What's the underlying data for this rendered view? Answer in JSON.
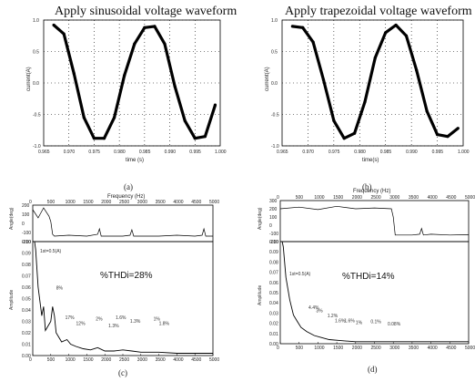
{
  "chart_data": [
    {
      "id": "a",
      "type": "line",
      "title": "Apply sinusoidal voltage waveform",
      "xlabel": "time (s)",
      "ylabel": "current(A)",
      "caption": "(a)",
      "xlim": [
        0.965,
        1.0
      ],
      "ylim": [
        -1.0,
        1.0
      ],
      "xticks": [
        "0.965",
        "0.970",
        "0.975",
        "0.980",
        "0.985",
        "0.990",
        "0.995",
        "1.000"
      ],
      "yticks": [
        "-1.0",
        "-0.5",
        "0.0",
        "0.5",
        "1.0"
      ],
      "grid": "dotted",
      "series": [
        {
          "x": [
            0.967,
            0.969,
            0.971,
            0.973,
            0.975,
            0.977,
            0.979,
            0.981,
            0.983,
            0.985,
            0.987,
            0.989,
            0.991,
            0.993,
            0.995,
            0.997,
            0.999
          ],
          "y": [
            0.92,
            0.78,
            0.15,
            -0.55,
            -0.88,
            -0.88,
            -0.55,
            0.12,
            0.62,
            0.88,
            0.9,
            0.62,
            -0.05,
            -0.6,
            -0.88,
            -0.85,
            -0.35
          ]
        }
      ]
    },
    {
      "id": "b",
      "type": "line",
      "title": "Apply trapezoidal voltage waveform",
      "xlabel": "time(s)",
      "ylabel": "current(A)",
      "caption": "(b)",
      "xlim": [
        0.965,
        1.0
      ],
      "ylim": [
        -1.0,
        1.0
      ],
      "xticks": [
        "0.965",
        "0.970",
        "0.975",
        "0.980",
        "0.985",
        "0.990",
        "0.995",
        "1.000"
      ],
      "yticks": [
        "-1.0",
        "-0.5",
        "0.0",
        "0.5",
        "1.0"
      ],
      "grid": "dotted",
      "series": [
        {
          "x": [
            0.967,
            0.969,
            0.971,
            0.973,
            0.975,
            0.977,
            0.979,
            0.981,
            0.983,
            0.985,
            0.987,
            0.989,
            0.991,
            0.993,
            0.995,
            0.997,
            0.999
          ],
          "y": [
            0.9,
            0.88,
            0.65,
            0.05,
            -0.6,
            -0.88,
            -0.8,
            -0.3,
            0.4,
            0.8,
            0.92,
            0.75,
            0.2,
            -0.45,
            -0.82,
            -0.85,
            -0.72
          ]
        }
      ]
    },
    {
      "id": "c",
      "type": "line",
      "caption": "(c)",
      "top_xlabel": "Frequency (Hz)",
      "xticks": [
        "0",
        "500",
        "1000",
        "1500",
        "2000",
        "2500",
        "3000",
        "3500",
        "4000",
        "4500",
        "5000"
      ],
      "xlim": [
        0,
        5000
      ],
      "phase_ylabel": "Angle(deg)",
      "phase_yticks": [
        "-200",
        "-100",
        "0",
        "100",
        "200"
      ],
      "phase_ylim": [
        -200,
        200
      ],
      "phase_x": [
        0,
        150,
        300,
        450,
        500,
        550,
        600,
        1000,
        1500,
        1800,
        1850,
        1900,
        2500,
        2700,
        2750,
        2800,
        3500,
        4000,
        4500,
        4700,
        4750,
        4800,
        5000
      ],
      "phase_y": [
        150,
        60,
        170,
        80,
        20,
        -120,
        -140,
        -130,
        -140,
        -120,
        -60,
        -140,
        -140,
        -130,
        -70,
        -140,
        -140,
        -130,
        -140,
        -130,
        -60,
        -140,
        -140
      ],
      "amp_ylabel": "Amplitude",
      "amp_yticks": [
        "0.00",
        "0.01",
        "0.02",
        "0.03",
        "0.04",
        "0.05",
        "0.06",
        "0.07",
        "0.08",
        "0.09",
        "0.10"
      ],
      "amp_ylim": [
        0,
        0.1
      ],
      "fundamental_label": "1st=0.5(A)",
      "thd_label": "%THDi=28%",
      "annotations": [
        "8%",
        "17%",
        "12%",
        "2%",
        "1.3%",
        "1.6%",
        "1.3%",
        "1%",
        "1.8%"
      ],
      "annotation_freq": [
        650,
        900,
        1200,
        1750,
        2100,
        2300,
        2700,
        3350,
        3500
      ],
      "annotation_amp": [
        0.058,
        0.032,
        0.027,
        0.031,
        0.025,
        0.032,
        0.029,
        0.031,
        0.027
      ],
      "spectrum": {
        "x": [
          50,
          80,
          150,
          250,
          300,
          350,
          500,
          550,
          600,
          650,
          800,
          950,
          1050,
          1200,
          1400,
          1600,
          1800,
          2000,
          2250,
          2500,
          2750,
          3000,
          3500,
          4000,
          4500,
          5000
        ],
        "y": [
          0.1,
          0.093,
          0.06,
          0.035,
          0.043,
          0.022,
          0.03,
          0.043,
          0.035,
          0.02,
          0.012,
          0.014,
          0.01,
          0.008,
          0.006,
          0.005,
          0.007,
          0.004,
          0.004,
          0.005,
          0.004,
          0.003,
          0.003,
          0.002,
          0.002,
          0.002
        ]
      }
    },
    {
      "id": "d",
      "type": "line",
      "caption": "(d)",
      "top_xlabel": "Frequency (Hz)",
      "xticks": [
        "0",
        "500",
        "1000",
        "1500",
        "2000",
        "2500",
        "3000",
        "3500",
        "4000",
        "4500",
        "5000"
      ],
      "xlim": [
        0,
        5000
      ],
      "phase_ylabel": "Angle(deg)",
      "phase_yticks": [
        "-200",
        "-100",
        "0",
        "100",
        "200",
        "300"
      ],
      "phase_ylim": [
        -200,
        300
      ],
      "phase_x": [
        0,
        500,
        1000,
        1500,
        2000,
        2500,
        2950,
        3000,
        3050,
        3500,
        3700,
        3750,
        3800,
        4000,
        4500,
        5000
      ],
      "phase_y": [
        200,
        220,
        190,
        230,
        200,
        210,
        200,
        100,
        -120,
        -120,
        -110,
        -40,
        -120,
        -110,
        -120,
        -115
      ],
      "amp_ylabel": "Amplitude",
      "amp_yticks": [
        "0.00",
        "0.01",
        "0.02",
        "0.03",
        "0.04",
        "0.05",
        "0.06",
        "0.07",
        "0.08",
        "0.09",
        "0.10"
      ],
      "amp_ylim": [
        0,
        0.1
      ],
      "fundamental_label": "1st=0.5(A)",
      "thd_label": "%THDi=14%",
      "annotations": [
        "4.4%",
        "3%",
        "1.2%",
        "1.6%",
        "1.6%",
        "1%",
        "0.1%",
        "0.08%"
      ],
      "annotation_freq": [
        750,
        950,
        1250,
        1450,
        1700,
        2000,
        2400,
        2850
      ],
      "annotation_amp": [
        0.034,
        0.031,
        0.026,
        0.021,
        0.021,
        0.019,
        0.02,
        0.018
      ],
      "spectrum": {
        "x": [
          50,
          80,
          150,
          250,
          350,
          450,
          550,
          700,
          900,
          1100,
          1300,
          1600,
          2000,
          2500,
          3000,
          3500,
          4000,
          4500,
          5000
        ],
        "y": [
          0.1,
          0.095,
          0.065,
          0.043,
          0.028,
          0.022,
          0.016,
          0.012,
          0.008,
          0.006,
          0.004,
          0.003,
          0.002,
          0.002,
          0.002,
          0.002,
          0.002,
          0.002,
          0.002
        ]
      }
    }
  ]
}
